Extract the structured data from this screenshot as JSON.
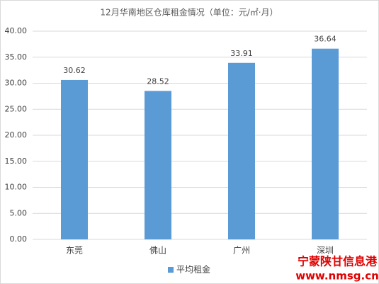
{
  "chart_data": {
    "type": "bar",
    "title": "12月华南地区仓库租金情况（单位：元/㎡·月）",
    "categories": [
      "东莞",
      "佛山",
      "广州",
      "深圳"
    ],
    "series": [
      {
        "name": "平均租金",
        "color": "#5b9bd5",
        "values": [
          30.62,
          28.52,
          33.91,
          36.64
        ]
      }
    ],
    "ylim": [
      0,
      40
    ],
    "yticks": [
      {
        "value": 0,
        "label": "0.00"
      },
      {
        "value": 5,
        "label": "5.00"
      },
      {
        "value": 10,
        "label": "10.00"
      },
      {
        "value": 15,
        "label": "15.00"
      },
      {
        "value": 20,
        "label": "20.00"
      },
      {
        "value": 25,
        "label": "25.00"
      },
      {
        "value": 30,
        "label": "30.00"
      },
      {
        "value": 35,
        "label": "35.00"
      },
      {
        "value": 40,
        "label": "40.00"
      }
    ],
    "grid": true,
    "legend": "bottom"
  },
  "watermark": {
    "name": "宁蒙陕甘信息港",
    "url": "www.nmsg.cn"
  }
}
